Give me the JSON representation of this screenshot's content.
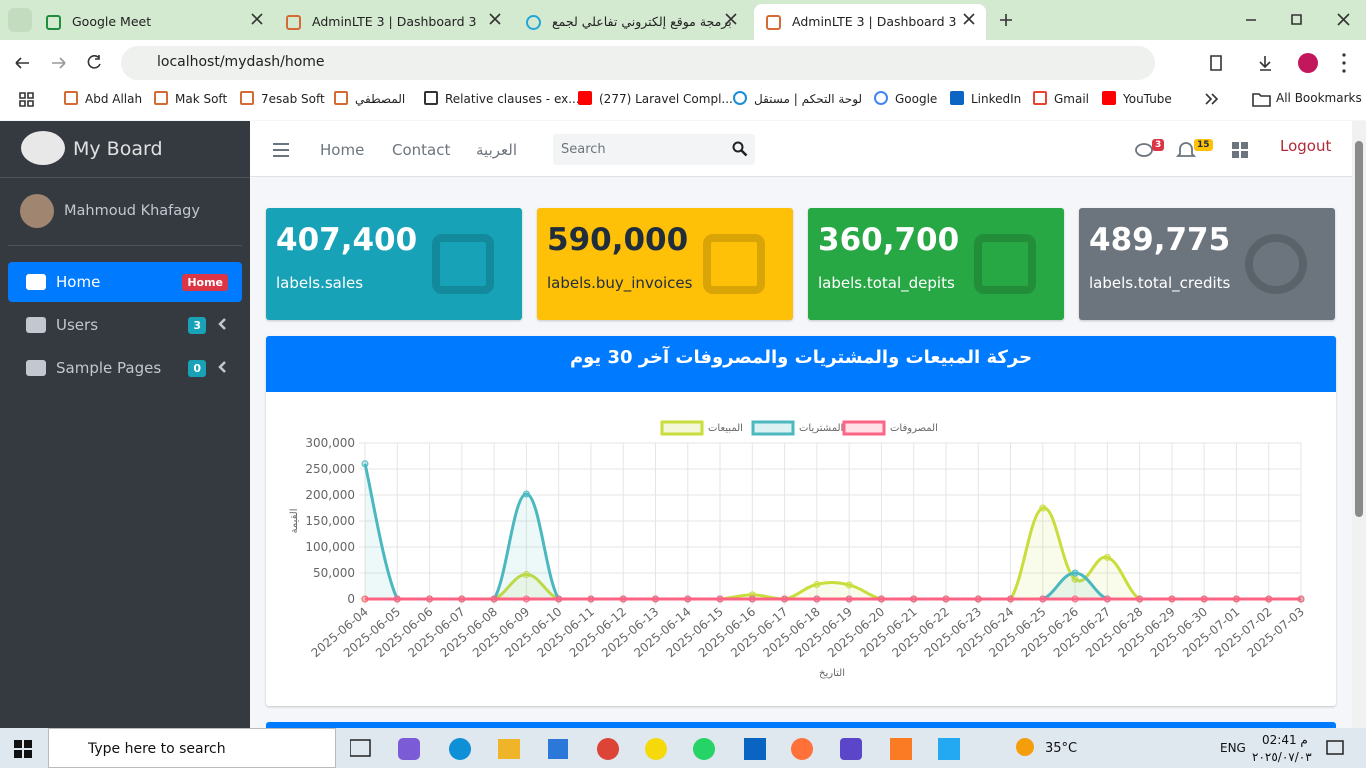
{
  "browser": {
    "tabs": [
      "Google Meet",
      "AdminLTE 3 | Dashboard 3",
      "برمجة موقع إلكتروني تفاعلي لجمع",
      "AdminLTE 3 | Dashboard 3"
    ],
    "address": "localhost/mydash/home",
    "bookmarks": [
      "Abd Allah",
      "Mak Soft",
      "7esab Soft",
      "المصطفي",
      "Relative clauses - ex...",
      "(277) Laravel Compl...",
      "لوحة التحكم | مستقل",
      "Google",
      "LinkedIn",
      "Gmail",
      "YouTube"
    ],
    "all_bookmarks": "All Bookmarks"
  },
  "sidebar": {
    "brand": "My Board",
    "user": "Mahmoud Khafagy",
    "menu": [
      {
        "label": "Home",
        "badge": "Home"
      },
      {
        "label": "Users",
        "badge": "3"
      },
      {
        "label": "Sample Pages",
        "badge": "0"
      }
    ]
  },
  "navbar": {
    "links": [
      "Home",
      "Contact",
      "العربية"
    ],
    "search": "Search",
    "messages_badge": "3",
    "notifications_badge": "15",
    "logout": "Logout"
  },
  "info_boxes": [
    {
      "value": "407,400",
      "label": "labels.sales"
    },
    {
      "value": "590,000",
      "label": "labels.buy_invoices"
    },
    {
      "value": "360,700",
      "label": "labels.total_depits"
    },
    {
      "value": "489,775",
      "label": "labels.total_credits"
    }
  ],
  "chart_data": {
    "type": "line",
    "title": "حركة المبيعات والمشتريات والمصروفات آخر 30 يوم",
    "x_label": "التاريخ",
    "y_label": "القيمة",
    "categories": [
      "2025-06-04",
      "2025-06-05",
      "2025-06-06",
      "2025-06-07",
      "2025-06-08",
      "2025-06-09",
      "2025-06-10",
      "2025-06-11",
      "2025-06-12",
      "2025-06-13",
      "2025-06-14",
      "2025-06-15",
      "2025-06-16",
      "2025-06-17",
      "2025-06-18",
      "2025-06-19",
      "2025-06-20",
      "2025-06-21",
      "2025-06-22",
      "2025-06-23",
      "2025-06-24",
      "2025-06-25",
      "2025-06-26",
      "2025-06-27",
      "2025-06-28",
      "2025-06-29",
      "2025-06-30",
      "2025-07-01",
      "2025-07-02",
      "2025-07-03"
    ],
    "series": [
      {
        "name": "المبيعات",
        "color": "#c9dd3c",
        "values": [
          0,
          0,
          0,
          0,
          0,
          47000,
          0,
          0,
          0,
          0,
          0,
          0,
          8000,
          0,
          28000,
          27000,
          0,
          0,
          0,
          0,
          0,
          175000,
          38000,
          80000,
          0,
          0,
          0,
          0,
          0,
          0
        ]
      },
      {
        "name": "المشتريات",
        "color": "#4bb8c0",
        "values": [
          260000,
          0,
          0,
          0,
          0,
          202000,
          0,
          0,
          0,
          0,
          0,
          0,
          0,
          0,
          0,
          0,
          0,
          0,
          0,
          0,
          0,
          0,
          50000,
          0,
          0,
          0,
          0,
          0,
          0,
          0
        ]
      },
      {
        "name": "المصروفات",
        "color": "#ff6384",
        "values": [
          0,
          0,
          0,
          0,
          0,
          0,
          0,
          0,
          0,
          0,
          0,
          0,
          0,
          0,
          0,
          0,
          0,
          0,
          0,
          0,
          0,
          0,
          0,
          0,
          0,
          0,
          0,
          0,
          0,
          0
        ]
      }
    ],
    "ylim": [
      0,
      300000
    ],
    "yticks": [
      0,
      {
        "value": 50000,
        "label": "50,000"
      },
      {
        "value": 100000,
        "label": "100,000"
      },
      {
        "value": 150000,
        "label": "150,000"
      },
      {
        "value": 200000,
        "label": "200,000"
      },
      {
        "value": 250000,
        "label": "250,000"
      },
      {
        "value": 300000,
        "label": "300,000"
      }
    ],
    "grid": true,
    "legend": "top"
  },
  "taskbar": {
    "search": "Type here to search",
    "weather": "35°C",
    "lang": "ENG",
    "time": "02:41 م",
    "date": "٢٠٢٥/٠٧/٠٣"
  }
}
